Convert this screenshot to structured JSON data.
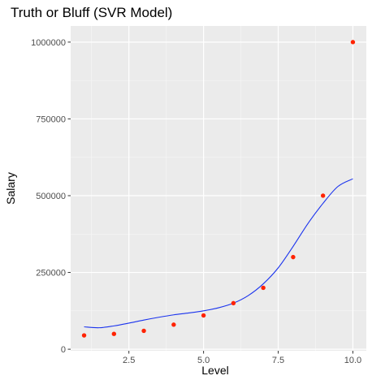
{
  "chart_data": {
    "type": "scatter",
    "title": "Truth or Bluff (SVR Model)",
    "xlabel": "Level",
    "ylabel": "Salary",
    "xlim": [
      0.55,
      10.45
    ],
    "ylim": [
      -5000,
      1052500
    ],
    "x_ticks": [
      2.5,
      5.0,
      7.5,
      10.0
    ],
    "x_tick_labels": [
      "2.5",
      "5.0",
      "7.5",
      "10.0"
    ],
    "y_ticks": [
      0,
      250000,
      500000,
      750000,
      1000000
    ],
    "y_tick_labels": [
      "0",
      "250000",
      "500000",
      "750000",
      "1000000"
    ],
    "grid": true,
    "legend": "none",
    "series": [
      {
        "kind": "points",
        "color": "#ff2200",
        "x": [
          1,
          2,
          3,
          4,
          5,
          6,
          7,
          8,
          9,
          10
        ],
        "y": [
          45000,
          50000,
          60000,
          80000,
          110000,
          150000,
          200000,
          300000,
          500000,
          1000000
        ]
      },
      {
        "kind": "line",
        "color": "#1a33ee",
        "x": [
          1.0,
          1.5,
          2.0,
          2.5,
          3.0,
          3.5,
          4.0,
          4.5,
          5.0,
          5.5,
          6.0,
          6.5,
          7.0,
          7.5,
          8.0,
          8.5,
          9.0,
          9.5,
          10.0
        ],
        "y": [
          73000,
          70000,
          76000,
          85000,
          95000,
          104000,
          112000,
          118000,
          125000,
          135000,
          150000,
          175000,
          213000,
          265000,
          335000,
          410000,
          475000,
          530000,
          555000
        ]
      }
    ]
  }
}
